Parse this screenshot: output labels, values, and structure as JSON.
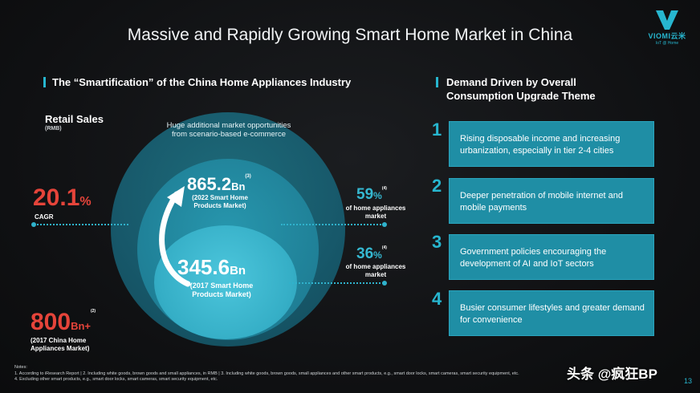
{
  "title": "Massive and Rapidly Growing Smart Home Market in China",
  "logo": {
    "brand": "VIOMI云米",
    "tagline": "IoT @ Home"
  },
  "left_section": {
    "heading": "The “Smartification” of the China Home Appliances Industry",
    "retail_sales": "Retail Sales",
    "rmb": "(RMB)",
    "huge_additional": "Huge additional market opportunities from scenario-based e-commerce",
    "value_2022": "865.2",
    "value_2022_unit": "Bn",
    "value_2022_sup": "(3)",
    "label_2022": "(2022 Smart Home Products Market)",
    "value_2017_smart": "345.6",
    "value_2017_smart_unit": "Bn",
    "label_2017_smart": "(2017 Smart Home Products Market)",
    "cagr_value": "20.1",
    "cagr_pct": "%",
    "cagr_label": "CAGR",
    "share_2022": "59",
    "share_2022_pct": "%",
    "share_2022_sup": "(4)",
    "share_2022_label": "of home appliances market",
    "share_2017": "36",
    "share_2017_pct": "%",
    "share_2017_sup": "(4)",
    "share_2017_label": "of home appliances market",
    "total_value": "800",
    "total_unit": "Bn+",
    "total_sup": "(2)",
    "total_label": "(2017 China Home Appliances Market)"
  },
  "right_section": {
    "heading": "Demand Driven by Overall Consumption Upgrade Theme",
    "items": [
      {
        "num": "1",
        "text": "Rising disposable income and increasing urbanization, especially in tier 2-4 cities"
      },
      {
        "num": "2",
        "text": "Deeper penetration of mobile internet and mobile payments"
      },
      {
        "num": "3",
        "text": "Government policies encouraging the development of AI and IoT sectors"
      },
      {
        "num": "4",
        "text": "Busier consumer lifestyles and greater demand for convenience"
      }
    ]
  },
  "notes": {
    "heading": "Notes:",
    "line1": "1. According to iResearch Report  |  2. Including white goods, brown goods and small appliances, in RMB  |  3. Including white goods, brown goods, small appliances and other smart products, e.g., smart door locks, smart cameras, smart security equipment, etc.",
    "line2": "4. Excluding other smart products, e.g., smart door locks, smart cameras, smart security equipment, etc."
  },
  "page_number": "13",
  "watermark": "头条 @疯狂BP",
  "colors": {
    "accent": "#27b6cf",
    "red": "#e5443a",
    "background": "#111214"
  }
}
